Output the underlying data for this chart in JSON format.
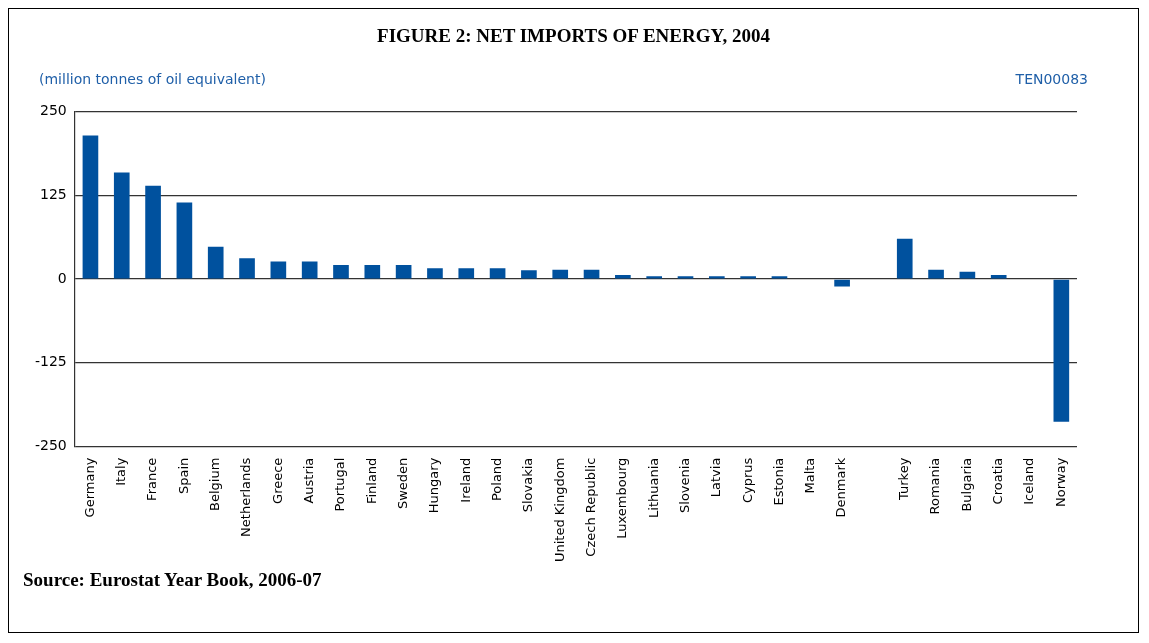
{
  "chart_data": {
    "type": "bar",
    "title": "FIGURE 2: NET IMPORTS OF ENERGY, 2004",
    "ylabel": "(million tonnes of oil equivalent)",
    "annotations": [
      "TEN00083",
      "Source: Eurostat Year Book, 2006-07"
    ],
    "categories": [
      "Germany",
      "Italy",
      "France",
      "Spain",
      "Belgium",
      "Netherlands",
      "Greece",
      "Austria",
      "Portugal",
      "Finland",
      "Sweden",
      "Hungary",
      "Ireland",
      "Poland",
      "Slovakia",
      "United Kingdom",
      "Czech Republic",
      "Luxembourg",
      "Lithuania",
      "Slovenia",
      "Latvia",
      "Cyprus",
      "Estonia",
      "Malta",
      "Denmark",
      null,
      "Turkey",
      "Romania",
      "Bulgaria",
      "Croatia",
      "Iceland",
      "Norway"
    ],
    "values": [
      214,
      159,
      139,
      114,
      48,
      31,
      26,
      26,
      21,
      21,
      21,
      16,
      16,
      16,
      13,
      14,
      14,
      6,
      4,
      4,
      4,
      4,
      4,
      0,
      -11,
      null,
      60,
      14,
      11,
      6,
      0,
      -213
    ],
    "color": "#00519e",
    "ylim": [
      -250,
      250
    ],
    "yticks": [
      -250,
      -125,
      0,
      125,
      250
    ],
    "grid": "y",
    "legend": false
  }
}
